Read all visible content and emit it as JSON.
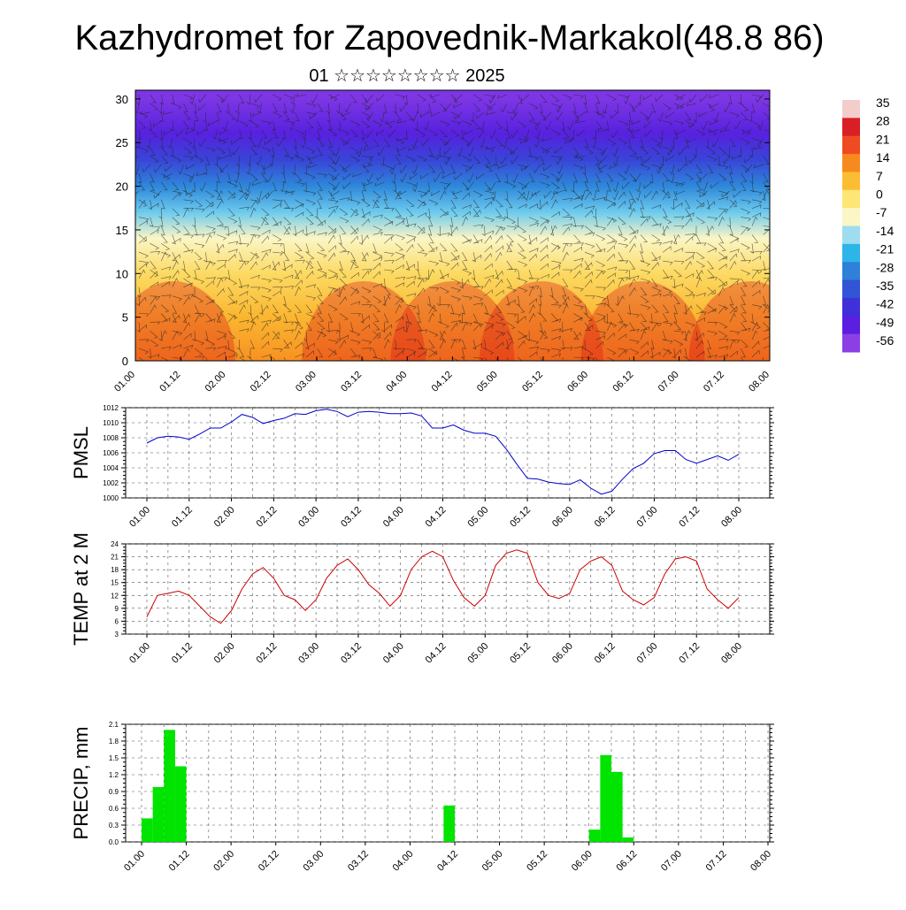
{
  "header": {
    "title": "Kazhydromet for Zapovednik-Markakol(48.8 86)",
    "subtitle": "01 ☆☆☆☆☆☆☆☆ 2025"
  },
  "chart_data": [
    {
      "type": "heatmap",
      "xtick_labels": [
        "01.00",
        "01.12",
        "02.00",
        "02.12",
        "03.00",
        "03.12",
        "04.00",
        "04.12",
        "05.00",
        "05.12",
        "06.00",
        "06.12",
        "07.00",
        "07.12",
        "08.00"
      ],
      "ylim": [
        0,
        31
      ],
      "yticks": [
        0,
        5,
        10,
        15,
        20,
        25,
        30
      ],
      "colorbar": {
        "labels": [
          "35",
          "28",
          "21",
          "14",
          "7",
          "0",
          "-7",
          "-14",
          "-21",
          "-28",
          "-35",
          "-42",
          "-49",
          "-56"
        ],
        "colors": [
          "#f4cccc",
          "#d91f26",
          "#ee4b23",
          "#f78a1f",
          "#fbbd33",
          "#fde576",
          "#fbf6c5",
          "#9fdcf0",
          "#2db5e8",
          "#2e80d8",
          "#3254d6",
          "#3f30d8",
          "#5b1fe0",
          "#8b3fe5"
        ]
      },
      "temperature_profile": [
        {
          "level": 0,
          "value": 13
        },
        {
          "level": 5,
          "value": 8
        },
        {
          "level": 10,
          "value": 2
        },
        {
          "level": 14,
          "value": -7
        },
        {
          "level": 17,
          "value": -17
        },
        {
          "level": 20,
          "value": -27
        },
        {
          "level": 23,
          "value": -38
        },
        {
          "level": 26,
          "value": -48
        },
        {
          "level": 30,
          "value": -54
        }
      ]
    },
    {
      "type": "line",
      "ylabel": "PMSL",
      "ylim": [
        1000,
        1012
      ],
      "yticks": [
        1000,
        1002,
        1004,
        1006,
        1008,
        1010,
        1012
      ],
      "xtick_labels": [
        "01.00",
        "01.12",
        "02.00",
        "02.12",
        "03.00",
        "03.12",
        "04.00",
        "04.12",
        "05.00",
        "05.12",
        "06.00",
        "06.12",
        "07.00",
        "07.12",
        "08.00"
      ],
      "color": "#0000cc",
      "x": [
        0,
        3,
        6,
        9,
        12,
        15,
        18,
        21,
        24,
        27,
        30,
        33,
        36,
        39,
        42,
        45,
        48,
        51,
        54,
        57,
        60,
        63,
        66,
        69,
        72,
        75,
        78,
        81,
        84,
        87,
        90,
        93,
        96,
        99,
        102,
        105,
        108,
        111,
        114,
        117,
        120,
        123,
        126,
        129,
        132,
        135,
        138,
        141,
        144,
        147,
        150,
        153,
        156,
        159,
        162,
        165,
        168
      ],
      "values": [
        1007.3,
        1008.0,
        1008.2,
        1008.1,
        1007.8,
        1008.5,
        1009.3,
        1009.3,
        1010.1,
        1011.1,
        1010.7,
        1009.9,
        1010.3,
        1010.6,
        1011.2,
        1011.1,
        1011.6,
        1011.8,
        1011.5,
        1010.8,
        1011.4,
        1011.5,
        1011.4,
        1011.2,
        1011.2,
        1011.3,
        1010.9,
        1009.3,
        1009.3,
        1009.7,
        1009.0,
        1008.6,
        1008.6,
        1008.2,
        1006.5,
        1004.5,
        1002.6,
        1002.5,
        1002.1,
        1001.9,
        1001.8,
        1002.4,
        1001.3,
        1000.5,
        1000.9,
        1002.5,
        1003.9,
        1004.6,
        1005.9,
        1006.3,
        1006.3,
        1005.1,
        1004.6,
        1005.1,
        1005.6,
        1005.0,
        1005.8
      ]
    },
    {
      "type": "line",
      "ylabel": "TEMP at 2 M",
      "ylim": [
        3,
        24
      ],
      "yticks": [
        3,
        6,
        9,
        12,
        15,
        18,
        21,
        24
      ],
      "xtick_labels": [
        "01.00",
        "01.12",
        "02.00",
        "02.12",
        "03.00",
        "03.12",
        "04.00",
        "04.12",
        "05.00",
        "05.12",
        "06.00",
        "06.12",
        "07.00",
        "07.12",
        "08.00"
      ],
      "color": "#cc0000",
      "x": [
        0,
        3,
        6,
        9,
        12,
        15,
        18,
        21,
        24,
        27,
        30,
        33,
        36,
        39,
        42,
        45,
        48,
        51,
        54,
        57,
        60,
        63,
        66,
        69,
        72,
        75,
        78,
        81,
        84,
        87,
        90,
        93,
        96,
        99,
        102,
        105,
        108,
        111,
        114,
        117,
        120,
        123,
        126,
        129,
        132,
        135,
        138,
        141,
        144,
        147,
        150,
        153,
        156,
        159,
        162,
        165,
        168
      ],
      "values": [
        7.0,
        12.0,
        12.5,
        13.0,
        12.0,
        9.5,
        7.0,
        5.5,
        8.5,
        13.5,
        17.0,
        18.5,
        16.0,
        12.0,
        11.0,
        8.5,
        11.0,
        16.0,
        19.0,
        20.5,
        18.0,
        14.5,
        12.5,
        9.5,
        12.0,
        18.0,
        21.0,
        22.3,
        21.0,
        15.5,
        11.5,
        9.5,
        12.0,
        19.0,
        21.8,
        22.6,
        21.8,
        15.0,
        12.0,
        11.3,
        12.5,
        18.0,
        20.0,
        21.0,
        19.0,
        13.0,
        11.0,
        9.8,
        11.5,
        17.0,
        20.5,
        21.0,
        20.0,
        13.5,
        11.0,
        9.0,
        11.5
      ]
    },
    {
      "type": "bar",
      "ylabel": "PRECIP, mm",
      "ylim": [
        0,
        2.1
      ],
      "yticks": [
        0.0,
        0.3,
        0.6,
        0.9,
        1.2,
        1.5,
        1.8,
        2.1
      ],
      "ytick_labels": [
        "0.0",
        "0.3",
        "0.6",
        "0.9",
        "1.2",
        "1.5",
        "1.8",
        "2.1"
      ],
      "xtick_labels": [
        "01.00",
        "01.12",
        "02.00",
        "02.12",
        "03.00",
        "03.12",
        "04.00",
        "04.12",
        "05.00",
        "05.12",
        "06.00",
        "06.12",
        "07.00",
        "07.12",
        "08.00"
      ],
      "color": "#00e400",
      "bars": [
        {
          "x": 1.5,
          "value": 0.42
        },
        {
          "x": 4.5,
          "value": 0.98
        },
        {
          "x": 7.5,
          "value": 2.0
        },
        {
          "x": 10.5,
          "value": 1.35
        },
        {
          "x": 82.5,
          "value": 0.65
        },
        {
          "x": 121.5,
          "value": 0.22
        },
        {
          "x": 124.5,
          "value": 1.55
        },
        {
          "x": 127.5,
          "value": 1.25
        },
        {
          "x": 130.5,
          "value": 0.08
        }
      ]
    }
  ]
}
